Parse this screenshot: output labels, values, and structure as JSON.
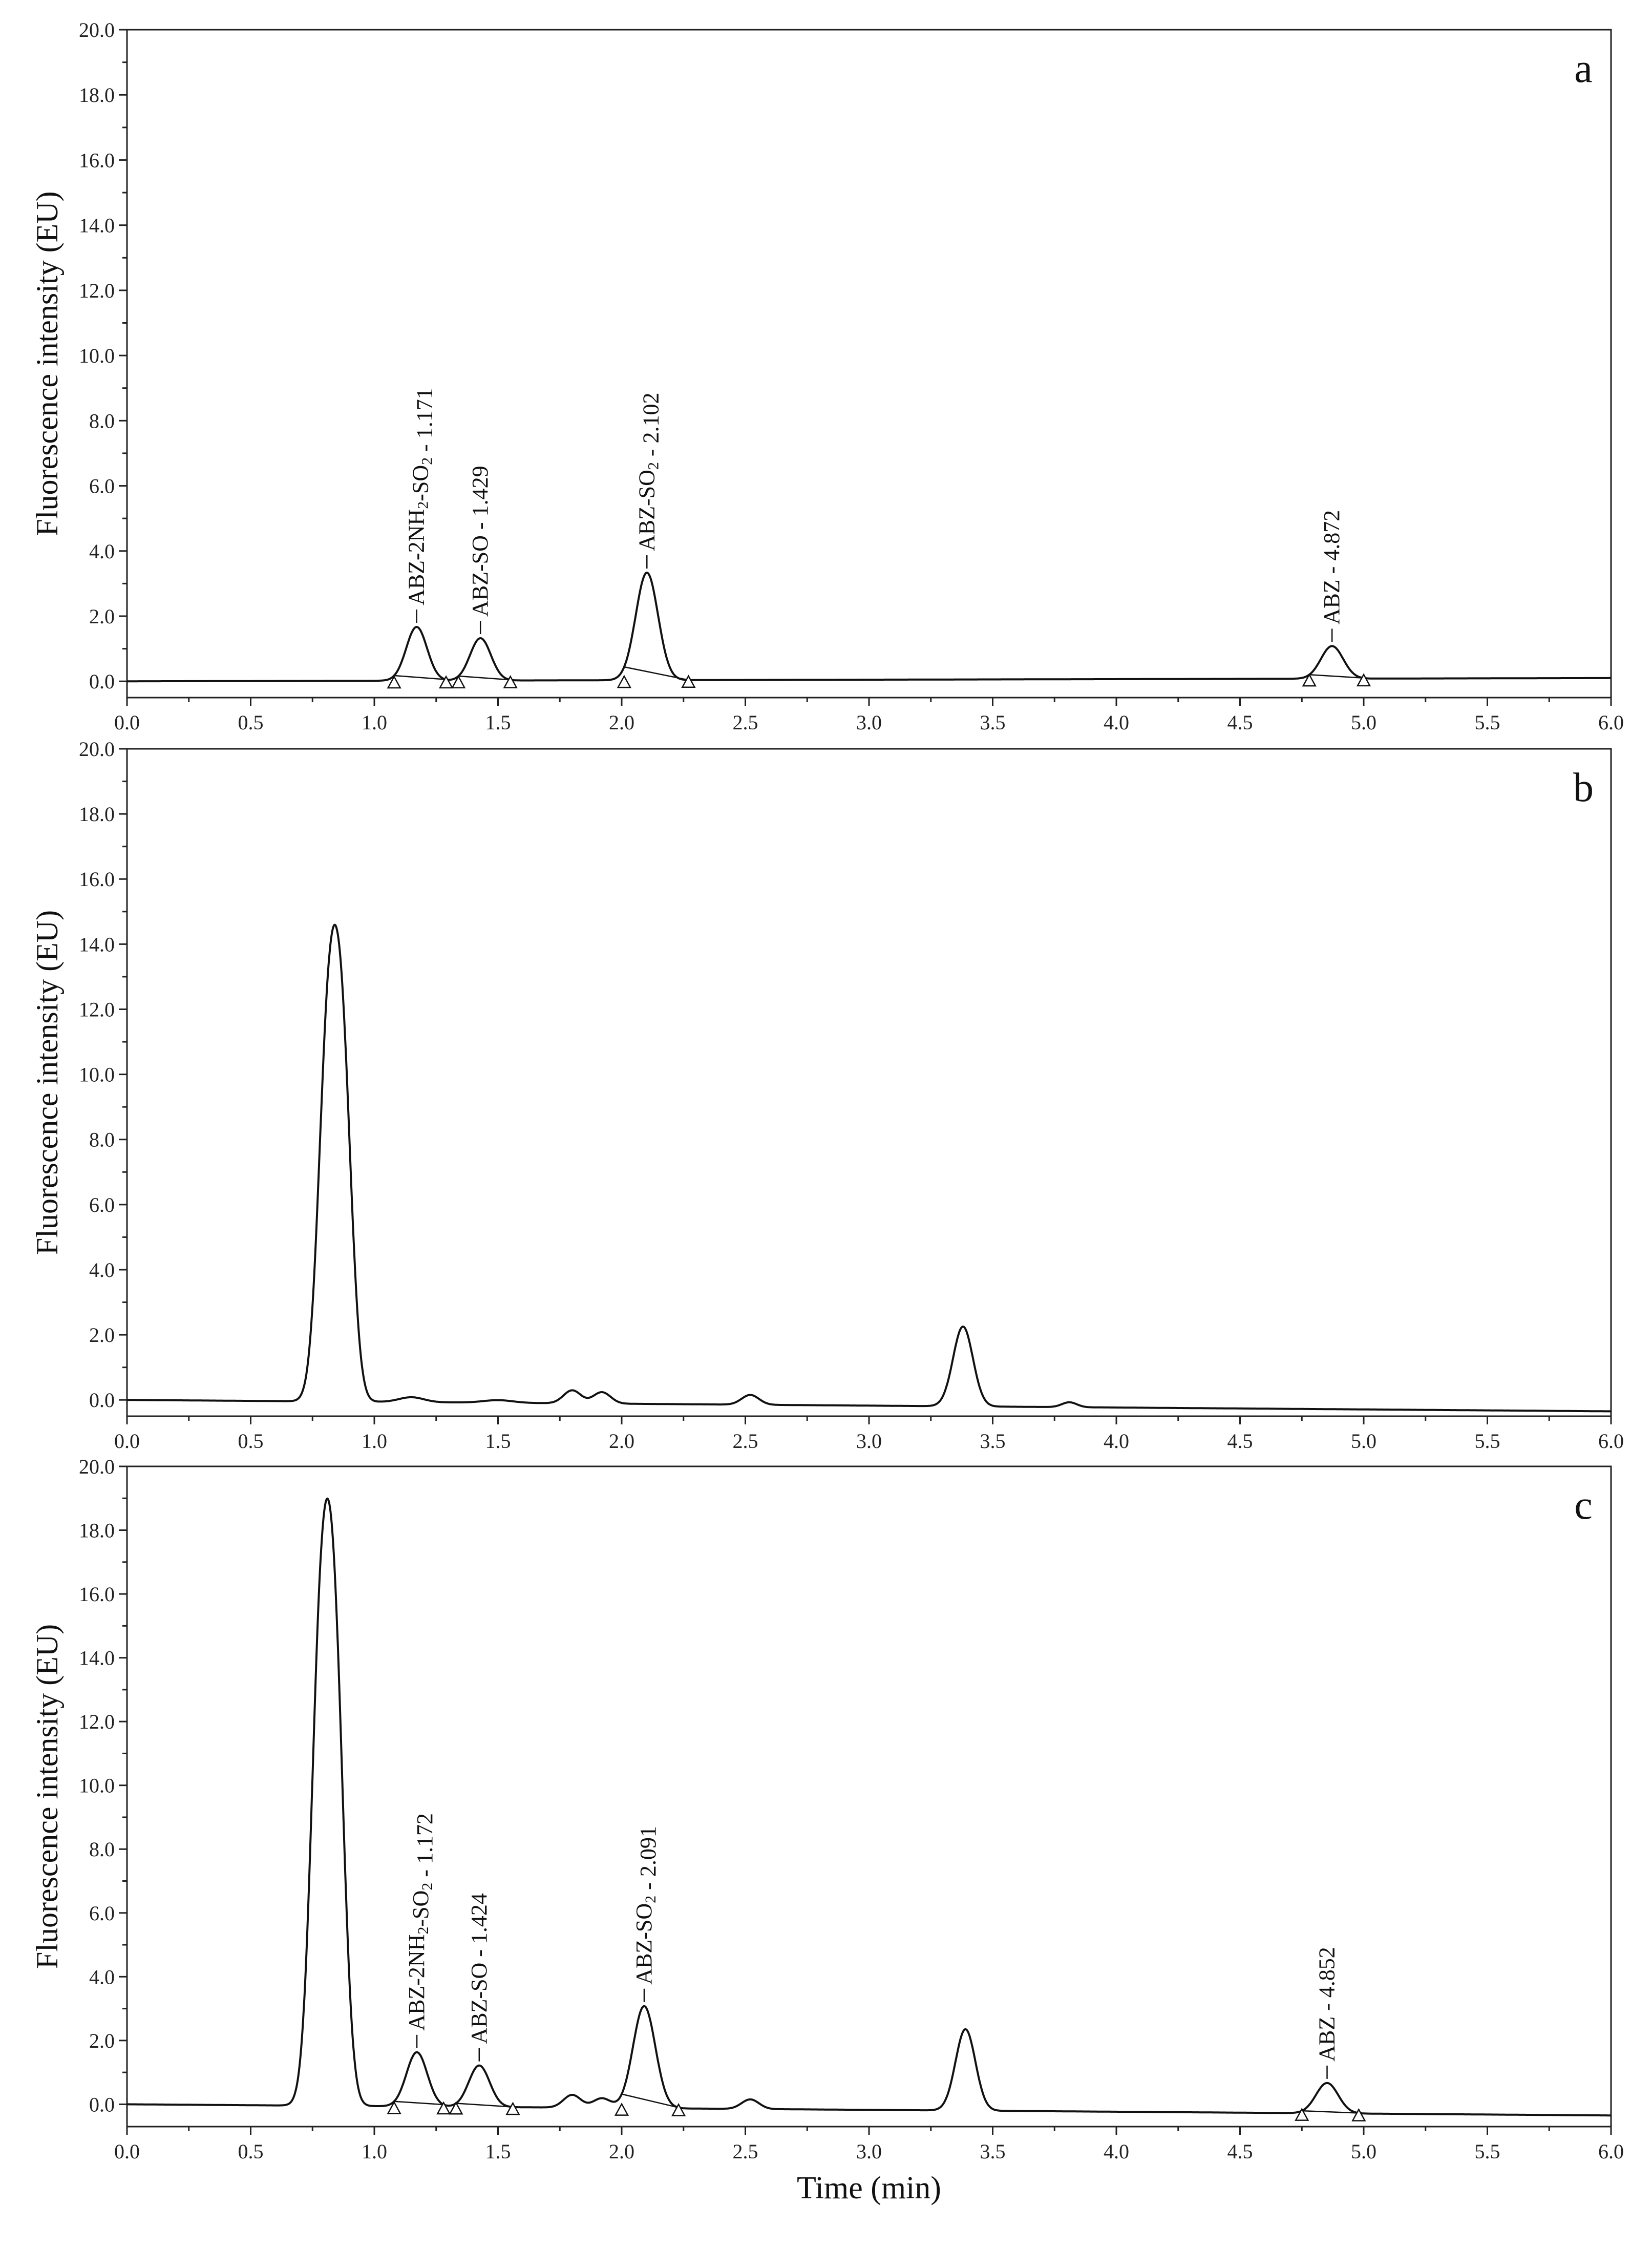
{
  "chart_data": [
    {
      "type": "line",
      "panel_label": "a",
      "xlabel": "",
      "ylabel": "Fluorescence intensity (EU)",
      "xlim": [
        0.0,
        6.0
      ],
      "ylim": [
        -0.5,
        20.0
      ],
      "x_ticks": [
        "0.0",
        "0.5",
        "1.0",
        "1.5",
        "2.0",
        "2.5",
        "3.0",
        "3.5",
        "4.0",
        "4.5",
        "5.0",
        "5.5",
        "6.0"
      ],
      "y_ticks": [
        "0.0",
        "2.0",
        "4.0",
        "6.0",
        "8.0",
        "10.0",
        "12.0",
        "14.0",
        "16.0",
        "18.0",
        "20.0"
      ],
      "baseline_start": 0.0,
      "baseline_end": 0.1,
      "peaks": [
        {
          "rt": 1.171,
          "height": 1.65,
          "width": 0.042,
          "label_parts": [
            "ABZ-2NH",
            "2",
            "-SO",
            "2",
            " - 1.171"
          ],
          "baseline_x": [
            1.08,
            1.29
          ],
          "marker_x": [
            1.08,
            1.29
          ]
        },
        {
          "rt": 1.429,
          "height": 1.3,
          "width": 0.042,
          "label_parts": [
            "ABZ-SO - 1.429"
          ],
          "baseline_x": [
            1.34,
            1.55
          ],
          "marker_x": [
            1.34,
            1.55
          ]
        },
        {
          "rt": 2.102,
          "height": 3.3,
          "width": 0.045,
          "label_parts": [
            "ABZ-SO",
            "2",
            " - 2.102"
          ],
          "baseline_x": [
            2.01,
            2.27
          ],
          "marker_x": [
            2.01,
            2.27
          ]
        },
        {
          "rt": 4.872,
          "height": 1.0,
          "width": 0.045,
          "label_parts": [
            "ABZ - 4.872"
          ],
          "baseline_x": [
            4.78,
            5.0
          ],
          "marker_x": [
            4.78,
            5.0
          ]
        }
      ],
      "other_peaks": []
    },
    {
      "type": "line",
      "panel_label": "b",
      "xlabel": "",
      "ylabel": "Fluorescence intensity (EU)",
      "xlim": [
        0.0,
        6.0
      ],
      "ylim": [
        -0.5,
        20.0
      ],
      "x_ticks": [
        "0.0",
        "0.5",
        "1.0",
        "1.5",
        "2.0",
        "2.5",
        "3.0",
        "3.5",
        "4.0",
        "4.5",
        "5.0",
        "5.5",
        "6.0"
      ],
      "y_ticks": [
        "0.0",
        "2.0",
        "4.0",
        "6.0",
        "8.0",
        "10.0",
        "12.0",
        "14.0",
        "16.0",
        "18.0",
        "20.0"
      ],
      "baseline_start": 0.0,
      "baseline_end": -0.35,
      "peaks": [],
      "other_peaks": [
        {
          "rt": 0.81,
          "height": 10.0,
          "width": 0.038
        },
        {
          "rt": 0.87,
          "height": 10.0,
          "width": 0.038
        },
        {
          "rt": 1.15,
          "height": 0.15,
          "width": 0.05
        },
        {
          "rt": 1.5,
          "height": 0.08,
          "width": 0.06
        },
        {
          "rt": 1.8,
          "height": 0.4,
          "width": 0.035
        },
        {
          "rt": 1.92,
          "height": 0.35,
          "width": 0.035
        },
        {
          "rt": 2.52,
          "height": 0.3,
          "width": 0.035
        },
        {
          "rt": 3.38,
          "height": 2.45,
          "width": 0.04
        },
        {
          "rt": 3.81,
          "height": 0.15,
          "width": 0.03
        }
      ]
    },
    {
      "type": "line",
      "panel_label": "c",
      "xlabel": "Time (min)",
      "ylabel": "Fluorescence intensity (EU)",
      "xlim": [
        0.0,
        6.0
      ],
      "ylim": [
        -0.7,
        20.0
      ],
      "x_ticks": [
        "0.0",
        "0.5",
        "1.0",
        "1.5",
        "2.0",
        "2.5",
        "3.0",
        "3.5",
        "4.0",
        "4.5",
        "5.0",
        "5.5",
        "6.0"
      ],
      "y_ticks": [
        "0.0",
        "2.0",
        "4.0",
        "6.0",
        "8.0",
        "10.0",
        "12.0",
        "14.0",
        "16.0",
        "18.0",
        "20.0"
      ],
      "baseline_start": 0.0,
      "baseline_end": -0.35,
      "peaks": [
        {
          "rt": 1.172,
          "height": 1.7,
          "width": 0.042,
          "label_parts": [
            "ABZ-2NH",
            "2",
            "-SO",
            "2",
            " - 1.172"
          ],
          "baseline_x": [
            1.08,
            1.28
          ],
          "marker_x": [
            1.08,
            1.28
          ]
        },
        {
          "rt": 1.424,
          "height": 1.3,
          "width": 0.042,
          "label_parts": [
            "ABZ-SO - 1.424"
          ],
          "baseline_x": [
            1.33,
            1.56
          ],
          "marker_x": [
            1.33,
            1.56
          ]
        },
        {
          "rt": 2.091,
          "height": 3.2,
          "width": 0.045,
          "label_parts": [
            "ABZ-SO",
            "2",
            " - 2.091"
          ],
          "baseline_x": [
            2.0,
            2.23
          ],
          "marker_x": [
            2.0,
            2.23
          ]
        },
        {
          "rt": 4.852,
          "height": 0.95,
          "width": 0.045,
          "label_parts": [
            "ABZ - 4.852"
          ],
          "baseline_x": [
            4.75,
            4.98
          ],
          "marker_x": [
            4.75,
            4.98
          ]
        }
      ],
      "other_peaks": [
        {
          "rt": 0.78,
          "height": 13.0,
          "width": 0.038
        },
        {
          "rt": 0.84,
          "height": 13.0,
          "width": 0.038
        },
        {
          "rt": 1.8,
          "height": 0.4,
          "width": 0.035
        },
        {
          "rt": 1.92,
          "height": 0.3,
          "width": 0.035
        },
        {
          "rt": 2.52,
          "height": 0.3,
          "width": 0.035
        },
        {
          "rt": 3.39,
          "height": 2.55,
          "width": 0.04
        }
      ]
    }
  ]
}
